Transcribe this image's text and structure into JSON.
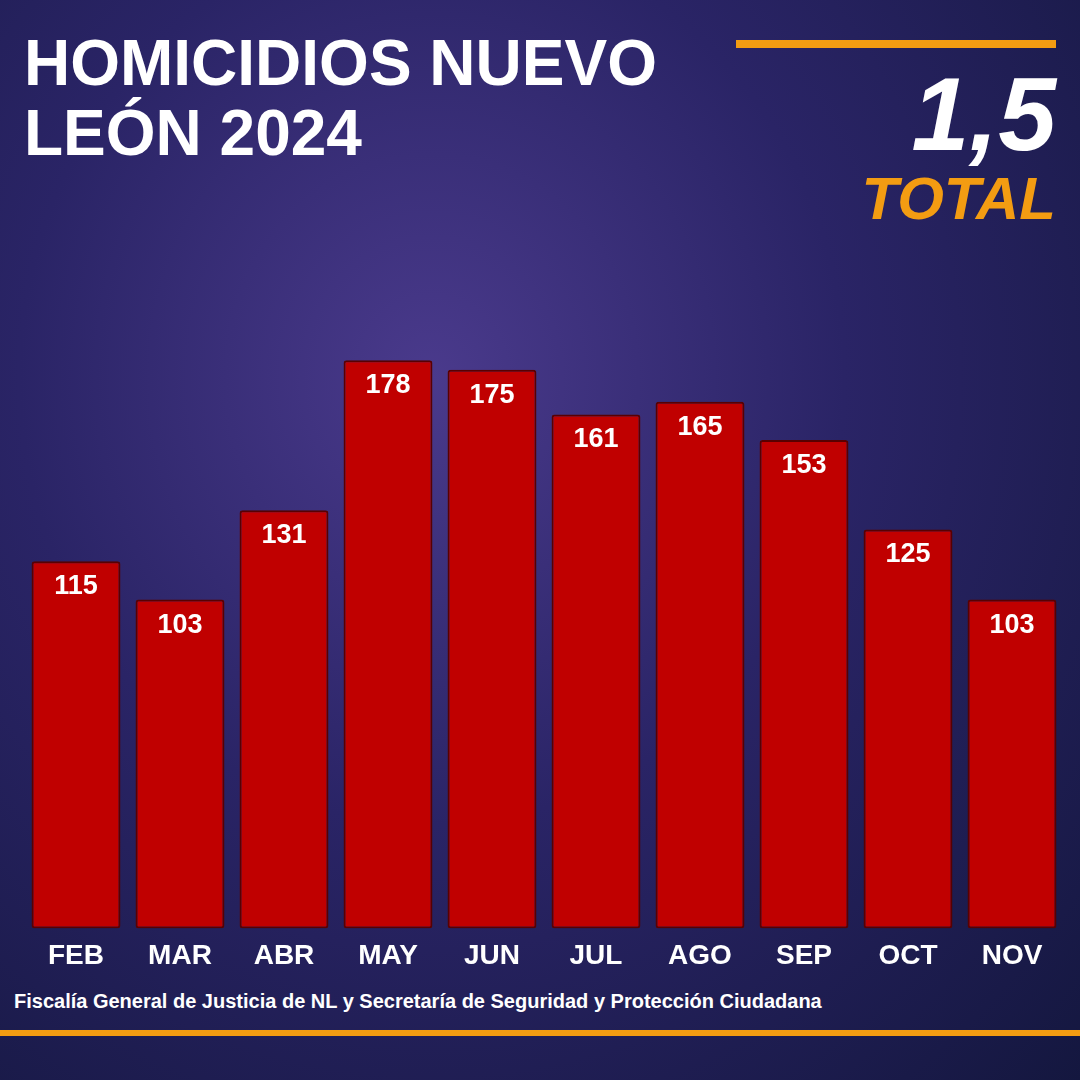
{
  "chart_data": {
    "type": "bar",
    "title": "HOMICIDIOS NUEVO LEÓN 2024",
    "total_text": "1,5",
    "total_label": "TOTAL",
    "source": "Fiscalía General de Justicia de NL y Secretaría de Seguridad y Protección Ciudadana",
    "categories": [
      "FEB",
      "MAR",
      "ABR",
      "MAY",
      "JUN",
      "JUL",
      "AGO",
      "SEP",
      "OCT",
      "NOV"
    ],
    "values": [
      115,
      103,
      131,
      178,
      175,
      161,
      165,
      153,
      125,
      103
    ],
    "color": "#c00000",
    "ylim": [
      0,
      200
    ],
    "yticks": [
      0,
      50,
      100,
      150,
      200
    ],
    "grid": false,
    "data_labels": true,
    "tick_labels": "x"
  }
}
